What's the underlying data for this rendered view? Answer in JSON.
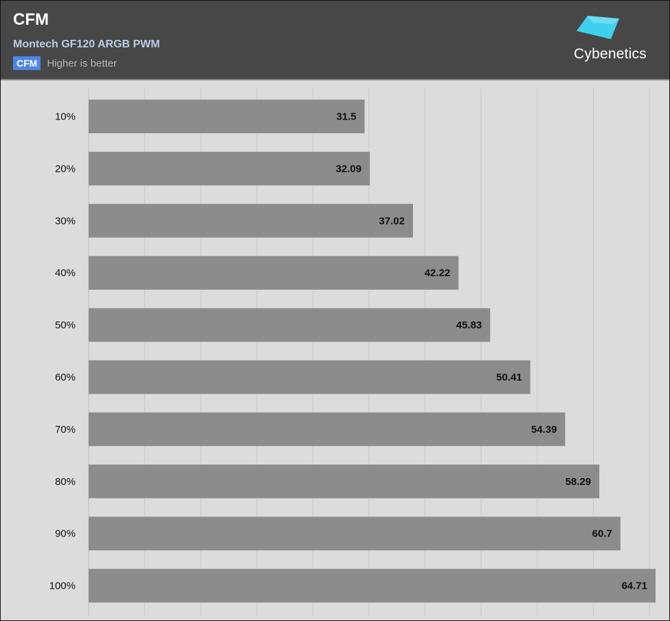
{
  "header": {
    "title": "CFM",
    "subtitle": "Montech GF120 ARGB PWM",
    "legend_label": "CFM",
    "legend_note": "Higher is better",
    "logo_text": "Cybenetics"
  },
  "colors": {
    "header_bg": "#474747",
    "plot_bg": "#dcdcdc",
    "bar": "#8c8c8c",
    "legend_swatch": "#4f86e6",
    "logo_accent": "#3fd0ee"
  },
  "chart_data": {
    "type": "bar",
    "orientation": "horizontal",
    "title": "CFM",
    "subtitle": "Montech GF120 ARGB PWM",
    "categories": [
      "10%",
      "20%",
      "30%",
      "40%",
      "50%",
      "60%",
      "70%",
      "80%",
      "90%",
      "100%"
    ],
    "series": [
      {
        "name": "CFM",
        "values": [
          31.5,
          32.09,
          37.02,
          42.22,
          45.83,
          50.41,
          54.39,
          58.29,
          60.7,
          64.71
        ]
      }
    ],
    "value_labels": [
      "31.5",
      "32.09",
      "37.02",
      "42.22",
      "45.83",
      "50.41",
      "54.39",
      "58.29",
      "60.7",
      "64.71"
    ],
    "xlabel": "",
    "ylabel": "",
    "xlim": [
      0,
      65
    ],
    "grid_step": 6.4,
    "grid": true,
    "legend": "top-left"
  }
}
